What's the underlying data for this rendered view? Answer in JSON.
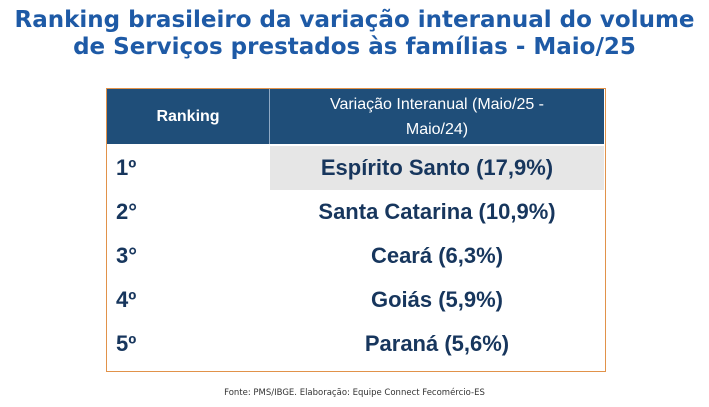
{
  "title": {
    "line1": "Ranking brasileiro da variação interanual do volume",
    "line2": "de Serviços prestados às famílias - Maio/25"
  },
  "table": {
    "headers": {
      "ranking": "Ranking",
      "variacao_line1": "Variação Interanual (Maio/25 -",
      "variacao_line2": "Maio/24)"
    },
    "rows": [
      {
        "rank": "1º",
        "value": "Espírito Santo (17,9%)"
      },
      {
        "rank": "2°",
        "value": "Santa Catarina (10,9%)"
      },
      {
        "rank": "3°",
        "value": "Ceará (6,3%)"
      },
      {
        "rank": "4º",
        "value": "Goiás (5,9%)"
      },
      {
        "rank": "5º",
        "value": "Paraná (5,6%)"
      }
    ]
  },
  "source": "Fonte: PMS/IBGE.  Elaboração: Equipe Connect Fecomércio-ES",
  "colors": {
    "title": "#1e5aa6",
    "header_bg": "#1f4e79",
    "text": "#17365d",
    "border": "#e1924a",
    "highlight": "#e6e6e6"
  }
}
